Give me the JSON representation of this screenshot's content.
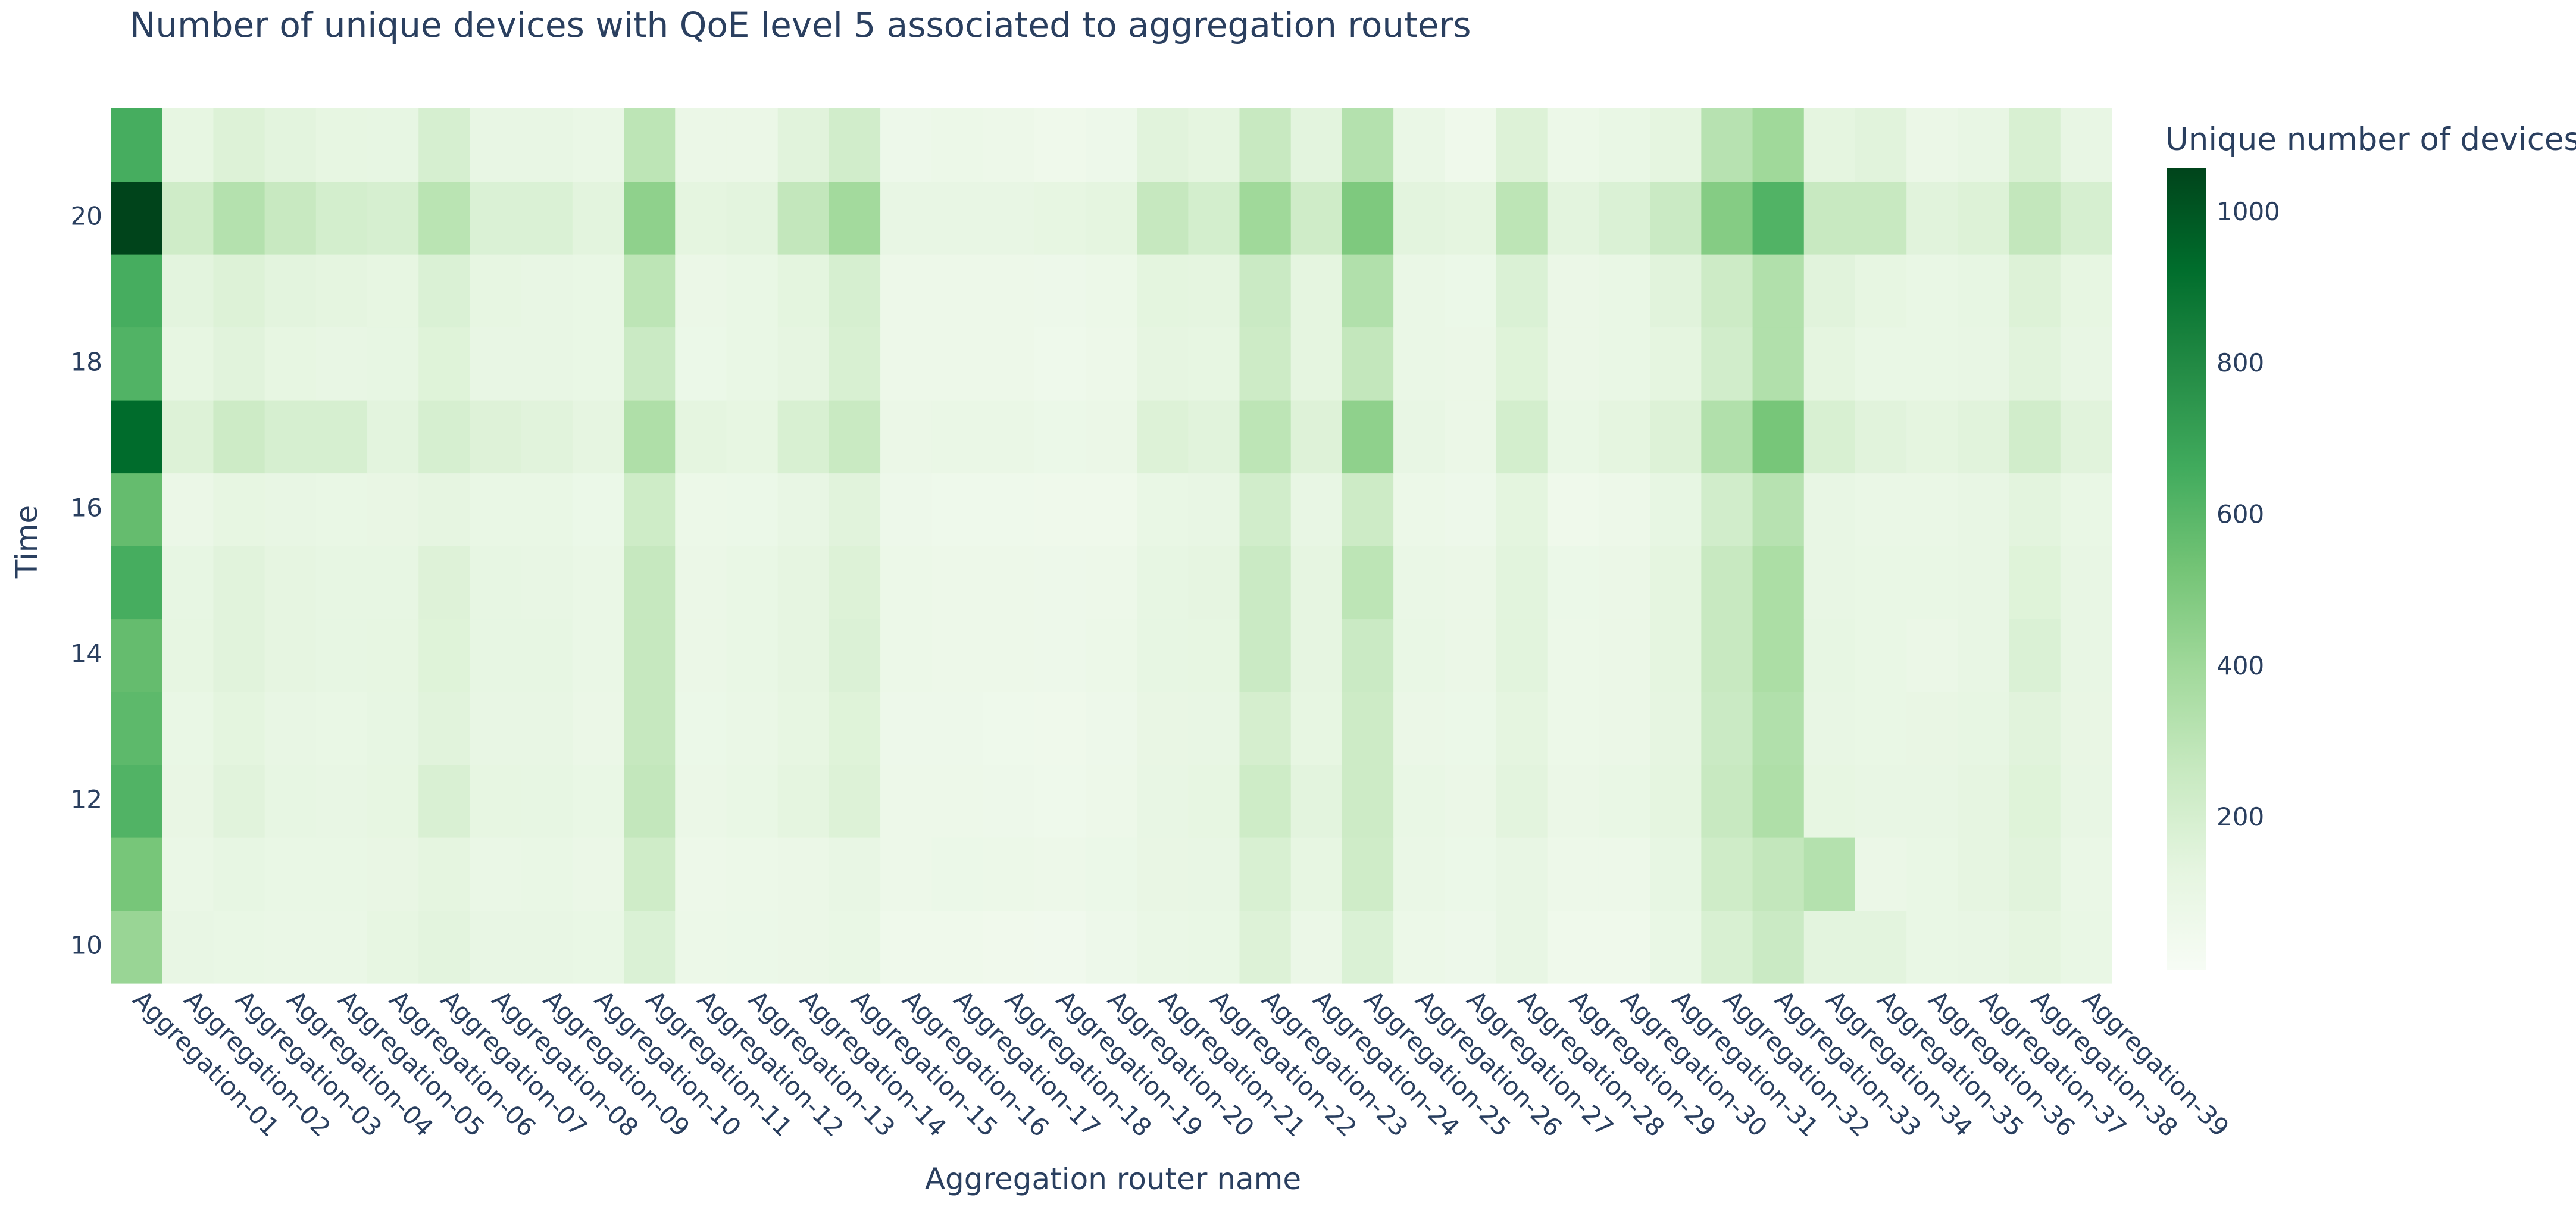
{
  "chart_data": {
    "type": "heatmap",
    "title": "Number of unique devices with QoE level 5 associated to aggregation routers",
    "xlabel": "Aggregation router name",
    "ylabel": "Time",
    "colorbar_title": "Unique number of devices",
    "x": [
      "Aggregation-01",
      "Aggregation-02",
      "Aggregation-03",
      "Aggregation-04",
      "Aggregation-05",
      "Aggregation-06",
      "Aggregation-07",
      "Aggregation-08",
      "Aggregation-09",
      "Aggregation-10",
      "Aggregation-11",
      "Aggregation-12",
      "Aggregation-13",
      "Aggregation-14",
      "Aggregation-15",
      "Aggregation-16",
      "Aggregation-17",
      "Aggregation-18",
      "Aggregation-19",
      "Aggregation-20",
      "Aggregation-21",
      "Aggregation-22",
      "Aggregation-23",
      "Aggregation-24",
      "Aggregation-25",
      "Aggregation-26",
      "Aggregation-27",
      "Aggregation-28",
      "Aggregation-29",
      "Aggregation-30",
      "Aggregation-31",
      "Aggregation-32",
      "Aggregation-33",
      "Aggregation-34",
      "Aggregation-35",
      "Aggregation-36",
      "Aggregation-37",
      "Aggregation-38",
      "Aggregation-39"
    ],
    "y": [
      10,
      11,
      12,
      13,
      14,
      15,
      16,
      17,
      18,
      19,
      20,
      21
    ],
    "y_ticks": [
      10,
      12,
      14,
      16,
      18,
      20
    ],
    "zmin": 0,
    "zmax": 1060,
    "colorbar_ticks": [
      200,
      400,
      600,
      800,
      1000
    ],
    "colorscale": [
      "#f7fcf5",
      "#e5f5e0",
      "#c7e9c0",
      "#a1d99b",
      "#74c476",
      "#41ab5d",
      "#238b45",
      "#006d2c",
      "#00441b"
    ],
    "z": [
      [
        420,
        110,
        100,
        95,
        95,
        120,
        140,
        110,
        110,
        100,
        180,
        80,
        85,
        90,
        100,
        60,
        60,
        55,
        50,
        70,
        95,
        100,
        170,
        90,
        180,
        80,
        70,
        110,
        60,
        60,
        100,
        190,
        250,
        140,
        140,
        100,
        110,
        130,
        100
      ],
      [
        520,
        95,
        115,
        100,
        100,
        105,
        130,
        95,
        100,
        90,
        230,
        75,
        80,
        90,
        110,
        75,
        85,
        80,
        75,
        85,
        105,
        110,
        190,
        120,
        230,
        95,
        85,
        110,
        75,
        75,
        115,
        230,
        280,
        330,
        90,
        100,
        125,
        150,
        95
      ],
      [
        620,
        105,
        150,
        115,
        110,
        120,
        185,
        120,
        115,
        100,
        280,
        90,
        100,
        130,
        170,
        75,
        75,
        70,
        65,
        75,
        110,
        120,
        235,
        140,
        240,
        100,
        90,
        140,
        90,
        100,
        130,
        260,
        350,
        120,
        110,
        110,
        125,
        160,
        110
      ],
      [
        590,
        100,
        135,
        110,
        100,
        115,
        150,
        110,
        110,
        90,
        270,
        85,
        95,
        120,
        160,
        70,
        70,
        65,
        60,
        70,
        105,
        110,
        205,
        120,
        240,
        90,
        85,
        130,
        80,
        90,
        125,
        250,
        340,
        110,
        100,
        105,
        115,
        150,
        105
      ],
      [
        570,
        120,
        150,
        125,
        115,
        120,
        160,
        115,
        115,
        95,
        270,
        90,
        100,
        125,
        175,
        80,
        75,
        75,
        70,
        80,
        115,
        120,
        250,
        125,
        250,
        100,
        90,
        145,
        80,
        90,
        130,
        260,
        360,
        115,
        100,
        90,
        110,
        180,
        110
      ],
      [
        650,
        115,
        150,
        125,
        115,
        115,
        165,
        115,
        110,
        95,
        270,
        90,
        100,
        125,
        170,
        80,
        75,
        75,
        70,
        75,
        115,
        125,
        250,
        125,
        300,
        95,
        90,
        145,
        85,
        90,
        130,
        260,
        360,
        110,
        100,
        100,
        110,
        160,
        110
      ],
      [
        570,
        90,
        120,
        110,
        100,
        105,
        125,
        100,
        100,
        85,
        235,
        80,
        85,
        110,
        150,
        70,
        65,
        65,
        60,
        60,
        100,
        110,
        220,
        110,
        240,
        80,
        70,
        135,
        60,
        75,
        115,
        220,
        320,
        110,
        95,
        95,
        110,
        140,
        100
      ],
      [
        930,
        170,
        240,
        200,
        200,
        140,
        200,
        165,
        150,
        125,
        350,
        130,
        120,
        190,
        255,
        90,
        95,
        95,
        85,
        90,
        170,
        150,
        300,
        165,
        450,
        110,
        90,
        210,
        100,
        130,
        170,
        340,
        520,
        190,
        150,
        130,
        150,
        220,
        150
      ],
      [
        620,
        120,
        150,
        120,
        110,
        115,
        160,
        110,
        110,
        100,
        250,
        85,
        100,
        125,
        190,
        75,
        75,
        75,
        65,
        75,
        125,
        120,
        240,
        130,
        280,
        95,
        90,
        160,
        90,
        100,
        130,
        220,
        340,
        130,
        100,
        100,
        110,
        150,
        110
      ],
      [
        650,
        140,
        170,
        140,
        130,
        120,
        180,
        120,
        110,
        100,
        300,
        90,
        100,
        135,
        200,
        75,
        75,
        75,
        70,
        80,
        135,
        130,
        250,
        130,
        340,
        95,
        85,
        180,
        90,
        100,
        150,
        240,
        340,
        150,
        120,
        100,
        115,
        170,
        120
      ],
      [
        1060,
        230,
        330,
        260,
        210,
        200,
        310,
        180,
        180,
        140,
        450,
        130,
        140,
        280,
        390,
        110,
        110,
        110,
        120,
        130,
        270,
        210,
        400,
        230,
        500,
        140,
        130,
        300,
        140,
        180,
        250,
        480,
        620,
        260,
        260,
        150,
        170,
        280,
        200
      ],
      [
        650,
        120,
        170,
        140,
        120,
        115,
        200,
        110,
        110,
        95,
        300,
        90,
        90,
        150,
        220,
        70,
        80,
        75,
        60,
        70,
        150,
        130,
        260,
        140,
        330,
        95,
        60,
        170,
        80,
        100,
        130,
        320,
        400,
        130,
        150,
        90,
        110,
        190,
        110
      ]
    ]
  }
}
